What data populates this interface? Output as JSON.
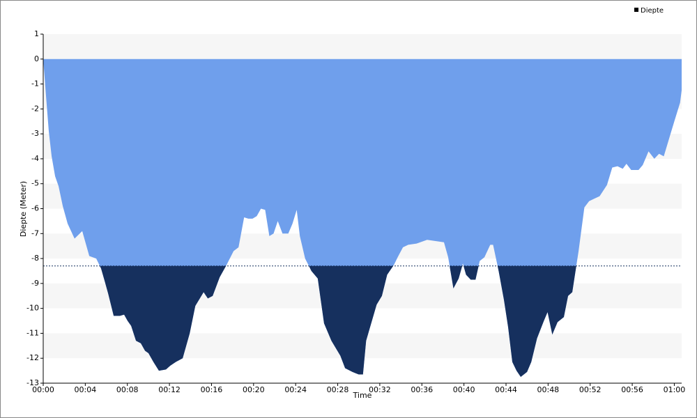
{
  "chart_data": {
    "type": "area",
    "x_label": "Time",
    "y_label": "Diepte (Meter)",
    "x": [
      0,
      0.27,
      0.53,
      0.8,
      1.13,
      1.46,
      1.86,
      2.32,
      2.98,
      3.71,
      4.38,
      5.04,
      5.5,
      5.84,
      6.17,
      6.7,
      7.29,
      7.69,
      8.02,
      8.36,
      8.82,
      9.28,
      9.68,
      10.01,
      10.48,
      11.0,
      11.67,
      12.07,
      12.6,
      13.26,
      13.93,
      14.46,
      15.25,
      15.65,
      16.11,
      16.78,
      17.44,
      18.1,
      18.57,
      19.1,
      19.5,
      19.9,
      20.3,
      20.7,
      21.1,
      21.5,
      21.9,
      22.3,
      22.75,
      23.3,
      23.7,
      24.1,
      24.4,
      24.9,
      25.5,
      26.1,
      26.7,
      27.4,
      28.25,
      28.7,
      29.4,
      30.0,
      30.4,
      30.7,
      31.7,
      32.2,
      32.7,
      33.35,
      33.7,
      34.2,
      34.7,
      35.5,
      36.5,
      37.3,
      38.1,
      38.5,
      39.0,
      39.5,
      39.9,
      40.2,
      40.65,
      41.1,
      41.5,
      41.95,
      42.5,
      42.77,
      43.3,
      43.8,
      44.2,
      44.6,
      45.0,
      45.4,
      46.0,
      46.4,
      46.95,
      47.6,
      47.95,
      48.4,
      48.9,
      49.5,
      49.9,
      50.3,
      50.9,
      51.45,
      51.9,
      52.4,
      52.9,
      53.6,
      54.1,
      54.6,
      55.1,
      55.45,
      55.9,
      56.6,
      57.0,
      57.55,
      58.1,
      58.55,
      59.0,
      59.5,
      60.0,
      60.55,
      60.7
    ],
    "series": [
      {
        "name": "Diepte",
        "color": "#6f9fec",
        "values": [
          0,
          -1.5,
          -2.9,
          -3.9,
          -4.7,
          -5.1,
          -5.9,
          -6.6,
          -7.2,
          -6.9,
          -7.9,
          -8.0,
          -8.4,
          -8.9,
          -9.4,
          -10.3,
          -10.3,
          -10.25,
          -10.5,
          -10.7,
          -11.3,
          -11.4,
          -11.7,
          -11.8,
          -12.15,
          -12.5,
          -12.45,
          -12.3,
          -12.15,
          -12.0,
          -11.0,
          -9.9,
          -9.35,
          -9.6,
          -9.5,
          -8.75,
          -8.25,
          -7.7,
          -7.55,
          -6.35,
          -6.4,
          -6.4,
          -6.3,
          -6.0,
          -6.05,
          -7.1,
          -7.0,
          -6.5,
          -7.0,
          -7.0,
          -6.6,
          -6.05,
          -7.1,
          -8.0,
          -8.5,
          -8.8,
          -10.6,
          -11.3,
          -11.9,
          -12.4,
          -12.55,
          -12.65,
          -12.65,
          -11.3,
          -9.85,
          -9.5,
          -8.65,
          -8.25,
          -7.95,
          -7.55,
          -7.45,
          -7.4,
          -7.25,
          -7.3,
          -7.35,
          -7.95,
          -9.2,
          -8.8,
          -8.2,
          -8.65,
          -8.85,
          -8.85,
          -8.1,
          -7.95,
          -7.45,
          -7.45,
          -8.5,
          -9.65,
          -10.75,
          -12.15,
          -12.5,
          -12.75,
          -12.55,
          -12.15,
          -11.2,
          -10.5,
          -10.15,
          -11.05,
          -10.55,
          -10.35,
          -9.5,
          -9.35,
          -7.7,
          -5.95,
          -5.7,
          -5.6,
          -5.5,
          -5.05,
          -4.35,
          -4.3,
          -4.4,
          -4.2,
          -4.45,
          -4.45,
          -4.25,
          -3.7,
          -4.0,
          -3.8,
          -3.9,
          -3.2,
          -2.5,
          -1.75,
          -1.25
        ]
      }
    ],
    "threshold": -8.3,
    "threshold_color": "#16305e",
    "xlim": [
      0,
      60.7
    ],
    "ylim": [
      -13,
      1
    ],
    "xticks": [
      {
        "value": 0,
        "label": "00:00"
      },
      {
        "value": 4,
        "label": "00:04"
      },
      {
        "value": 8,
        "label": "00:08"
      },
      {
        "value": 12,
        "label": "00:12"
      },
      {
        "value": 16,
        "label": "00:16"
      },
      {
        "value": 20,
        "label": "00:20"
      },
      {
        "value": 24,
        "label": "00:24"
      },
      {
        "value": 28,
        "label": "00:28"
      },
      {
        "value": 32,
        "label": "00:32"
      },
      {
        "value": 36,
        "label": "00:36"
      },
      {
        "value": 40,
        "label": "00:40"
      },
      {
        "value": 44,
        "label": "00:44"
      },
      {
        "value": 48,
        "label": "00:48"
      },
      {
        "value": 52,
        "label": "00:52"
      },
      {
        "value": 56,
        "label": "00:56"
      },
      {
        "value": 60,
        "label": "01:00"
      }
    ],
    "yticks": [
      1,
      0,
      -1,
      -2,
      -3,
      -4,
      -5,
      -6,
      -7,
      -8,
      -9,
      -10,
      -11,
      -12,
      -13
    ],
    "grid": "bands",
    "legend": "top-right"
  }
}
